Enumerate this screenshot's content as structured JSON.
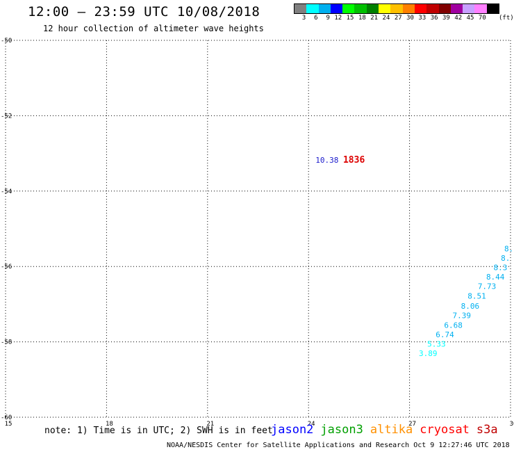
{
  "header": {
    "title": "12:00 – 23:59 UTC 10/08/2018",
    "subtitle": "12 hour collection of altimeter wave heights"
  },
  "scale": {
    "colors": [
      "#808080",
      "#00ffff",
      "#00b0f0",
      "#0000ff",
      "#00ff00",
      "#00c000",
      "#008000",
      "#ffff00",
      "#ffc000",
      "#ff8000",
      "#ff0000",
      "#c00000",
      "#800000",
      "#a000a0",
      "#c8a0ff",
      "#ff80ff",
      "#000000"
    ],
    "labels": [
      "3",
      "6",
      "9",
      "12",
      "15",
      "18",
      "21",
      "24",
      "27",
      "30",
      "33",
      "36",
      "39",
      "42",
      "45",
      "70"
    ],
    "unit": "(ft)"
  },
  "map": {
    "lon_range": [
      15,
      30
    ],
    "lat_range": [
      -60,
      -50
    ],
    "x_ticks": [
      15,
      18,
      21,
      24,
      27,
      30
    ],
    "y_ticks": [
      -50,
      -52,
      -54,
      -56,
      -58,
      -60
    ],
    "grid": "dotted",
    "readings": [
      {
        "value": "10.38",
        "lon": 24.55,
        "lat": -53.25,
        "color": "#1a1acc"
      },
      {
        "value": "1836",
        "lon": 25.35,
        "lat": -53.25,
        "color": "#dd0000",
        "bold": true
      },
      {
        "value": "8.",
        "lon": 29.95,
        "lat": -55.6,
        "color": "#00b0f0"
      },
      {
        "value": "8.",
        "lon": 29.85,
        "lat": -55.85,
        "color": "#00b0f0"
      },
      {
        "value": "8.3",
        "lon": 29.7,
        "lat": -56.1,
        "color": "#00b0f0"
      },
      {
        "value": "8.44",
        "lon": 29.55,
        "lat": -56.35,
        "color": "#00b0f0"
      },
      {
        "value": "7.73",
        "lon": 29.3,
        "lat": -56.6,
        "color": "#00b0f0"
      },
      {
        "value": "8.51",
        "lon": 29.0,
        "lat": -56.85,
        "color": "#00b0f0"
      },
      {
        "value": "8.06",
        "lon": 28.8,
        "lat": -57.12,
        "color": "#00b0f0"
      },
      {
        "value": "7.39",
        "lon": 28.55,
        "lat": -57.37,
        "color": "#00b0f0"
      },
      {
        "value": "6.68",
        "lon": 28.3,
        "lat": -57.63,
        "color": "#00b0f0"
      },
      {
        "value": "6.74",
        "lon": 28.05,
        "lat": -57.88,
        "color": "#00b0f0"
      },
      {
        "value": "5.33",
        "lon": 27.8,
        "lat": -58.13,
        "color": "#00ffff"
      },
      {
        "value": "3.89",
        "lon": 27.55,
        "lat": -58.38,
        "color": "#00ffff"
      }
    ]
  },
  "footer": {
    "note": "note: 1) Time is in UTC; 2) SWH is in feet",
    "satellites": [
      {
        "name": "jason2",
        "color": "#0000ff"
      },
      {
        "name": "jason3",
        "color": "#00a000"
      },
      {
        "name": "altika",
        "color": "#ff9000"
      },
      {
        "name": "cryosat",
        "color": "#ff0000"
      },
      {
        "name": "s3a",
        "color": "#c00000"
      }
    ],
    "credit": "NOAA/NESDIS Center for Satellite Applications and Research    Oct  9 12:27:46 UTC 2018"
  }
}
